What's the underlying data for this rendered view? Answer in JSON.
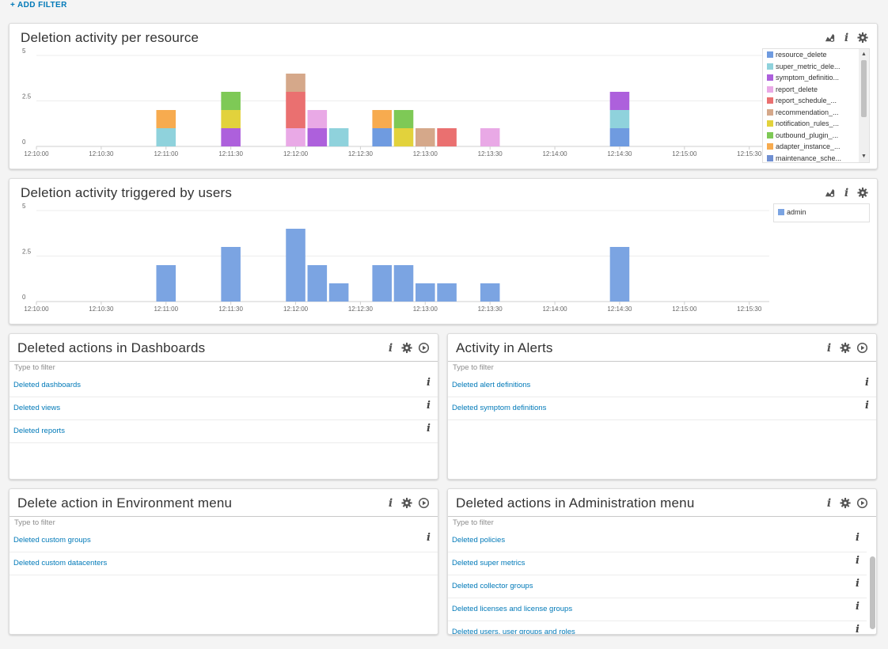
{
  "filter": {
    "add_filter_label": "+ ADD FILTER"
  },
  "panels": {
    "resource_chart": {
      "title": "Deletion activity per resource"
    },
    "users_chart": {
      "title": "Deletion activity triggered by users"
    },
    "dashboards": {
      "title": "Deleted actions in Dashboards",
      "filter_placeholder": "Type to filter",
      "items": [
        "Deleted dashboards",
        "Deleted views",
        "Deleted reports"
      ]
    },
    "alerts": {
      "title": "Activity in Alerts",
      "filter_placeholder": "Type to filter",
      "items": [
        "Deleted alert definitions",
        "Deleted symptom definitions"
      ]
    },
    "environment": {
      "title": "Delete action in Environment menu",
      "filter_placeholder": "Type to filter",
      "items": [
        "Deleted custom groups",
        "Deleted custom datacenters"
      ]
    },
    "administration": {
      "title": "Deleted actions in Administration menu",
      "filter_placeholder": "Type to filter",
      "items": [
        "Deleted policies",
        "Deleted super metrics",
        "Deleted collector groups",
        "Deleted licenses and license groups",
        "Deleted users, user groups and roles"
      ]
    }
  },
  "icons": {
    "chart_tools": [
      "chart-settings-icon",
      "info-icon",
      "gear-icon"
    ],
    "list_tools": [
      "info-icon",
      "gear-icon",
      "play-icon"
    ]
  },
  "colors": {
    "resource_delete": "#6f9be0",
    "super_metric_delete": "#8fd2dc",
    "symptom_definition": "#ad60dc",
    "report_delete": "#e9a9e6",
    "report_schedule": "#ea7070",
    "recommendation": "#d5a88a",
    "notification_rules": "#e2d23c",
    "outbound_plugin": "#7ec956",
    "adapter_instance": "#f7ab4f",
    "maintenance_schedule": "#6f8fd2",
    "admin": "#7ba4e2",
    "link": "#0079b8"
  },
  "chart_data": [
    {
      "type": "bar",
      "stacked": true,
      "title": "Deletion activity per resource",
      "x": [
        "12:11:00",
        "12:11:30",
        "12:12:00",
        "12:12:10",
        "12:12:20",
        "12:12:40",
        "12:12:50",
        "12:13:00",
        "12:13:10",
        "12:13:30",
        "12:14:30"
      ],
      "x_ticks": [
        "12:10:00",
        "12:10:30",
        "12:11:00",
        "12:11:30",
        "12:12:00",
        "12:12:30",
        "12:13:00",
        "12:13:30",
        "12:14:00",
        "12:14:30",
        "12:15:00",
        "12:15:30"
      ],
      "x_range": [
        "12:10:00",
        "12:15:40"
      ],
      "y_ticks": [
        "0",
        "2.5",
        "5"
      ],
      "ylim": [
        0,
        5
      ],
      "grid": true,
      "legend_position": "right",
      "series": [
        {
          "name": "resource_delete",
          "color": "#6f9be0",
          "values": [
            0,
            0,
            0,
            0,
            0,
            1,
            0,
            0,
            0,
            0,
            1
          ]
        },
        {
          "name": "super_metric_dele...",
          "color": "#8fd2dc",
          "values": [
            1,
            0,
            0,
            0,
            1,
            0,
            0,
            0,
            0,
            0,
            1
          ]
        },
        {
          "name": "symptom_definitio...",
          "color": "#ad60dc",
          "values": [
            0,
            1,
            0,
            1,
            0,
            0,
            0,
            0,
            0,
            0,
            1
          ]
        },
        {
          "name": "report_delete",
          "color": "#e9a9e6",
          "values": [
            0,
            0,
            1,
            1,
            0,
            0,
            0,
            0,
            0,
            1,
            0
          ]
        },
        {
          "name": "report_schedule_...",
          "color": "#ea7070",
          "values": [
            0,
            0,
            2,
            0,
            0,
            0,
            0,
            0,
            1,
            0,
            0
          ]
        },
        {
          "name": "recommendation_...",
          "color": "#d5a88a",
          "values": [
            0,
            0,
            1,
            0,
            0,
            0,
            0,
            1,
            0,
            0,
            0
          ]
        },
        {
          "name": "notification_rules_...",
          "color": "#e2d23c",
          "values": [
            0,
            1,
            0,
            0,
            0,
            0,
            1,
            0,
            0,
            0,
            0
          ]
        },
        {
          "name": "outbound_plugin_...",
          "color": "#7ec956",
          "values": [
            0,
            1,
            0,
            0,
            0,
            0,
            1,
            0,
            0,
            0,
            0
          ]
        },
        {
          "name": "adapter_instance_...",
          "color": "#f7ab4f",
          "values": [
            1,
            0,
            0,
            0,
            0,
            1,
            0,
            0,
            0,
            0,
            0
          ]
        },
        {
          "name": "maintenance_sche...",
          "color": "#6f8fd2",
          "values": [
            0,
            0,
            0,
            0,
            0,
            0,
            0,
            0,
            0,
            0,
            0
          ]
        }
      ]
    },
    {
      "type": "bar",
      "title": "Deletion activity triggered by users",
      "x": [
        "12:11:00",
        "12:11:30",
        "12:12:00",
        "12:12:10",
        "12:12:20",
        "12:12:40",
        "12:12:50",
        "12:13:00",
        "12:13:10",
        "12:13:30",
        "12:14:30"
      ],
      "x_ticks": [
        "12:10:00",
        "12:10:30",
        "12:11:00",
        "12:11:30",
        "12:12:00",
        "12:12:30",
        "12:13:00",
        "12:13:30",
        "12:14:00",
        "12:14:30",
        "12:15:00",
        "12:15:30"
      ],
      "x_range": [
        "12:10:00",
        "12:15:40"
      ],
      "y_ticks": [
        "0",
        "2.5",
        "5"
      ],
      "ylim": [
        0,
        5
      ],
      "grid": true,
      "legend_position": "right",
      "series": [
        {
          "name": "admin",
          "color": "#7ba4e2",
          "values": [
            2,
            3,
            4,
            2,
            1,
            2,
            2,
            1,
            1,
            1,
            3
          ]
        }
      ]
    }
  ]
}
